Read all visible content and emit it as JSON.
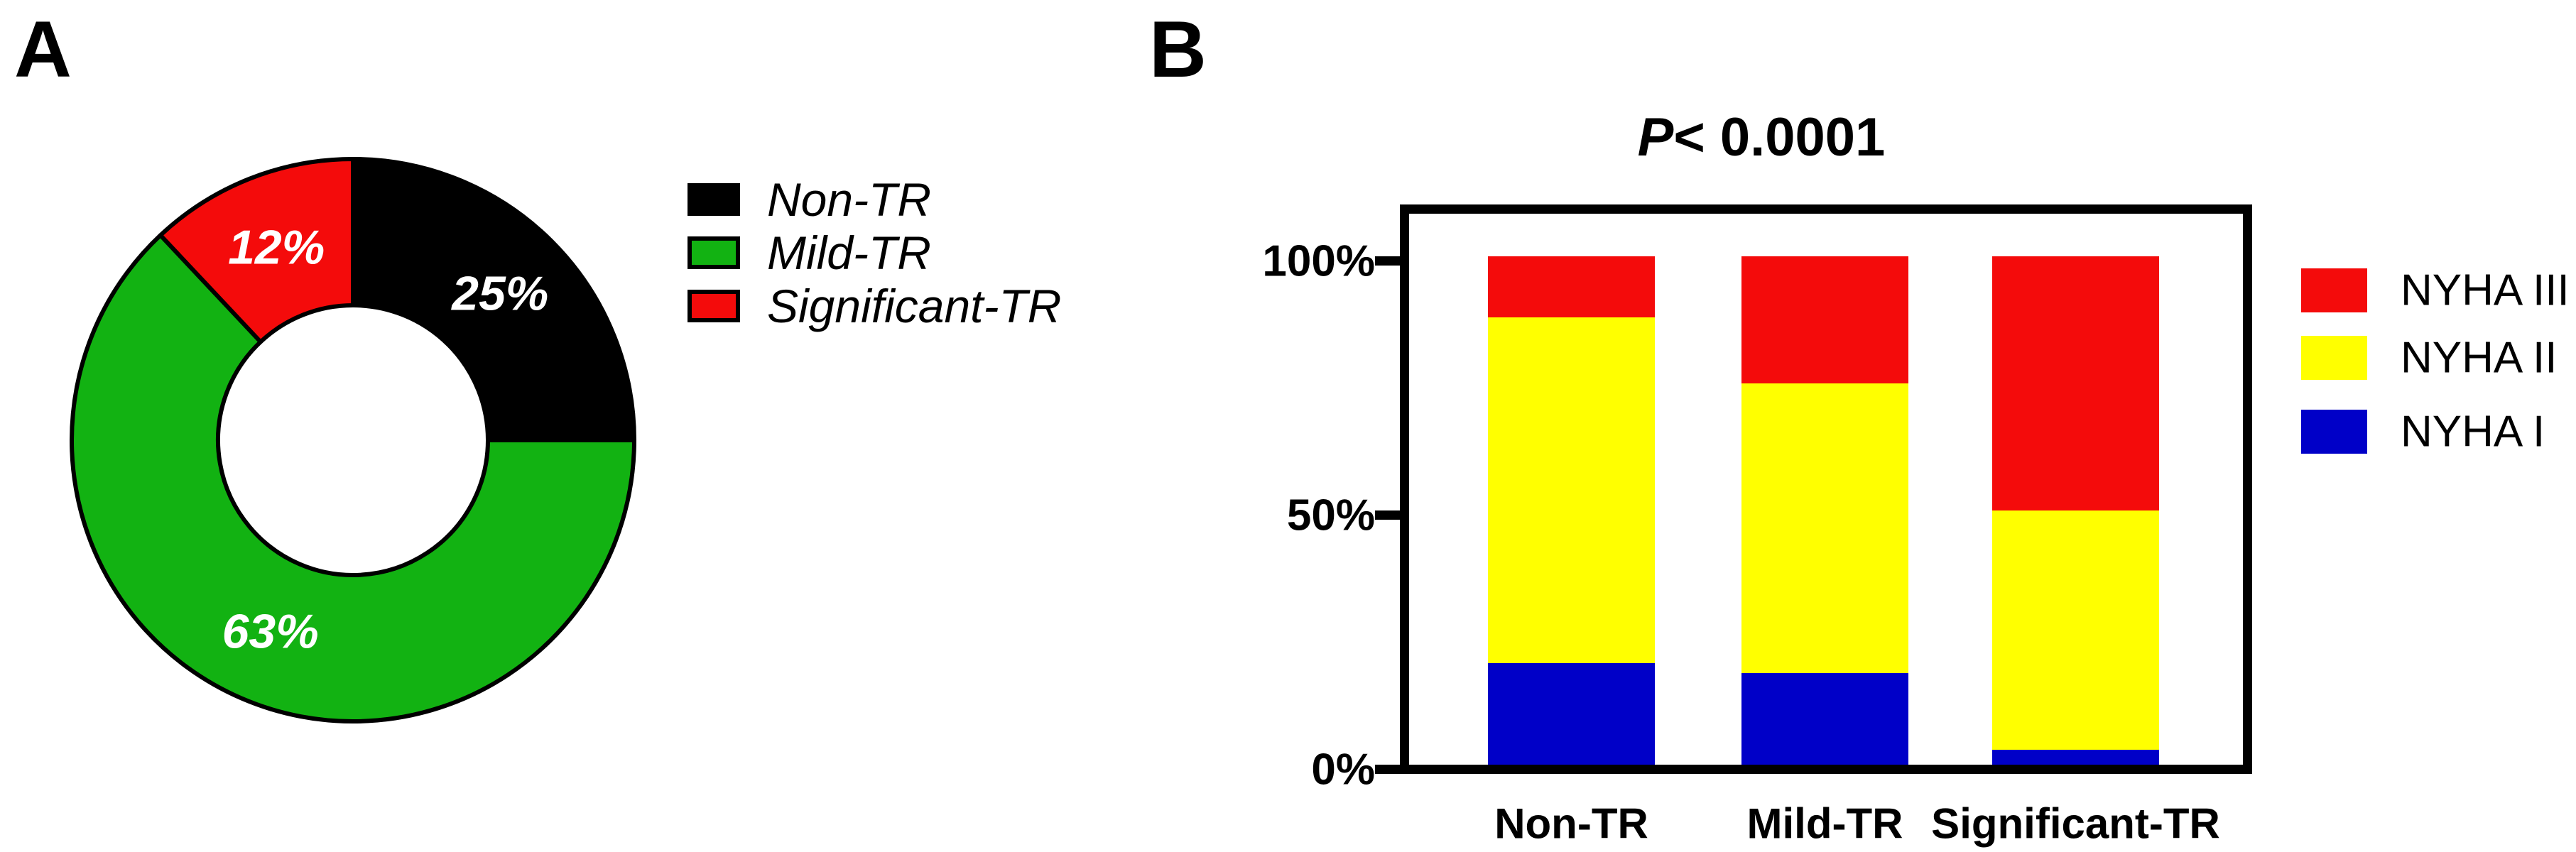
{
  "figure": {
    "background": "#ffffff"
  },
  "panel_a": {
    "label": "A",
    "legend": [
      {
        "name": "Non-TR",
        "color": "#000000"
      },
      {
        "name": "Mild-TR",
        "color": "#12B212"
      },
      {
        "name": "Significant-TR",
        "color": "#F40B0B"
      }
    ]
  },
  "panel_b": {
    "label": "B",
    "title_p": "P",
    "title_rest": "< 0.0001",
    "y_ticks": [
      {
        "label": "100%",
        "value": 100
      },
      {
        "label": "50%",
        "value": 50
      },
      {
        "label": "0%",
        "value": 0
      }
    ],
    "categories": [
      "Non-TR",
      "Mild-TR",
      "Significant-TR"
    ],
    "legend": [
      {
        "name": "NYHA III",
        "color": "#F40B0B"
      },
      {
        "name": "NYHA II",
        "color": "#FFFF00"
      },
      {
        "name": "NYHA I",
        "color": "#0000C8"
      }
    ]
  },
  "chart_data": [
    {
      "type": "pie",
      "subtype": "donut",
      "panel": "A",
      "labels": [
        "Non-TR",
        "Mild-TR",
        "Significant-TR"
      ],
      "values": [
        25,
        63,
        12
      ],
      "value_labels": [
        "25%",
        "63%",
        "12%"
      ],
      "colors": [
        "#000000",
        "#12B212",
        "#F40B0B"
      ],
      "label_color": "#ffffff",
      "start_angle_deg": 0,
      "direction": "clockwise",
      "legend_position": "right"
    },
    {
      "type": "bar",
      "subtype": "stacked-percent",
      "panel": "B",
      "title": "P< 0.0001",
      "categories": [
        "Non-TR",
        "Mild-TR",
        "Significant-TR"
      ],
      "series": [
        {
          "name": "NYHA I",
          "color": "#0000C8",
          "values": [
            20,
            18,
            3
          ]
        },
        {
          "name": "NYHA II",
          "color": "#FFFF00",
          "values": [
            68,
            57,
            47
          ]
        },
        {
          "name": "NYHA III",
          "color": "#F40B0B",
          "values": [
            12,
            25,
            50
          ]
        }
      ],
      "ylim": [
        0,
        100
      ],
      "grid": false,
      "legend_position": "right"
    }
  ]
}
